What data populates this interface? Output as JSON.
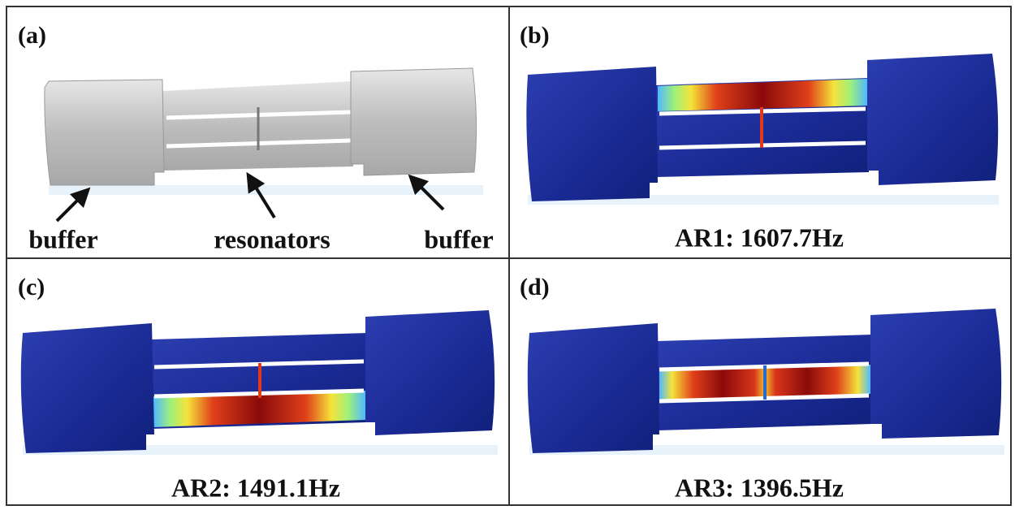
{
  "panels": [
    {
      "label": "(a)",
      "annotations": [
        "buffer",
        "resonators",
        "buffer"
      ]
    },
    {
      "label": "(b)",
      "caption": "AR1: 1607.7Hz"
    },
    {
      "label": "(c)",
      "caption": "AR2: 1491.1Hz"
    },
    {
      "label": "(d)",
      "caption": "AR3: 1396.5Hz"
    }
  ]
}
